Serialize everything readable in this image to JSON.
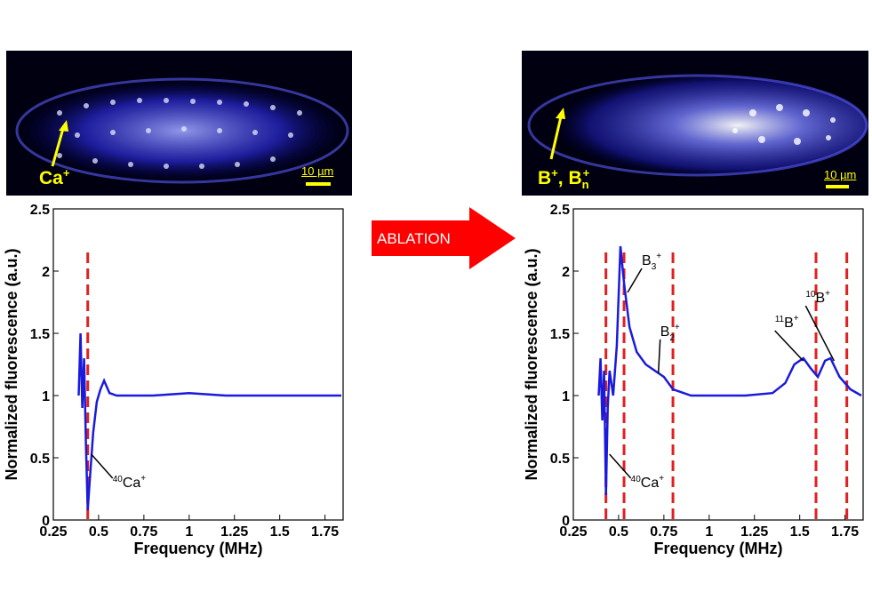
{
  "arrow_label": "ABLATION",
  "colors": {
    "trace": "#1a1adc",
    "marker": "#e02020",
    "arrow": "#ff0000",
    "annotation_yellow": "#ffff00"
  },
  "images": {
    "left": {
      "ion_label": "Ca",
      "ion_sup": "+",
      "scale_bar": "10 µm"
    },
    "right": {
      "ion_label_1": "B",
      "ion_sup_1": "+",
      "ion_sep": ", ",
      "ion_label_2": "B",
      "ion_sub_2": "n",
      "ion_sup_2": "+",
      "scale_bar": "10 µm"
    }
  },
  "chart_data": [
    {
      "type": "line",
      "xlabel": "Frequency (MHz)",
      "ylabel": "Normalized fluorescence (a.u.)",
      "xlim": [
        0.25,
        1.85
      ],
      "ylim": [
        0,
        2.5
      ],
      "xticks": [
        "0.25",
        "0.5",
        "0.75",
        "1",
        "1.25",
        "1.5",
        "1.75"
      ],
      "yticks": [
        "0",
        "0.5",
        "1",
        "1.5",
        "2",
        "2.5"
      ],
      "series": [
        {
          "values_xy": [
            [
              0.39,
              1.0
            ],
            [
              0.4,
              1.5
            ],
            [
              0.41,
              0.9
            ],
            [
              0.42,
              1.3
            ],
            [
              0.43,
              0.6
            ],
            [
              0.44,
              0.08
            ],
            [
              0.45,
              0.3
            ],
            [
              0.47,
              0.7
            ],
            [
              0.49,
              0.95
            ],
            [
              0.51,
              1.05
            ],
            [
              0.53,
              1.12
            ],
            [
              0.56,
              1.02
            ],
            [
              0.6,
              1.0
            ],
            [
              0.8,
              1.0
            ],
            [
              1.0,
              1.02
            ],
            [
              1.2,
              1.0
            ],
            [
              1.4,
              1.0
            ],
            [
              1.6,
              1.0
            ],
            [
              1.84,
              1.0
            ]
          ]
        }
      ],
      "markers_x": [
        0.44
      ],
      "annotations": [
        {
          "x": 0.44,
          "y": 0.55,
          "mass": "40",
          "label": "Ca",
          "sup": "+"
        }
      ]
    },
    {
      "type": "line",
      "xlabel": "Frequency (MHz)",
      "ylabel": "Normalized fluorescence (a.u.)",
      "xlim": [
        0.25,
        1.85
      ],
      "ylim": [
        0,
        2.5
      ],
      "xticks": [
        "0.25",
        "0.5",
        "0.75",
        "1",
        "1.25",
        "1.5",
        "1.75"
      ],
      "yticks": [
        "0",
        "0.5",
        "1",
        "1.5",
        "2",
        "2.5"
      ],
      "series": [
        {
          "values_xy": [
            [
              0.39,
              1.0
            ],
            [
              0.4,
              1.3
            ],
            [
              0.41,
              0.8
            ],
            [
              0.42,
              1.2
            ],
            [
              0.43,
              0.2
            ],
            [
              0.44,
              0.9
            ],
            [
              0.45,
              1.2
            ],
            [
              0.47,
              1.0
            ],
            [
              0.49,
              1.4
            ],
            [
              0.51,
              2.2
            ],
            [
              0.53,
              1.9
            ],
            [
              0.56,
              1.55
            ],
            [
              0.6,
              1.35
            ],
            [
              0.65,
              1.25
            ],
            [
              0.7,
              1.2
            ],
            [
              0.75,
              1.15
            ],
            [
              0.8,
              1.05
            ],
            [
              0.9,
              1.0
            ],
            [
              1.2,
              1.0
            ],
            [
              1.35,
              1.02
            ],
            [
              1.42,
              1.1
            ],
            [
              1.47,
              1.25
            ],
            [
              1.52,
              1.3
            ],
            [
              1.56,
              1.22
            ],
            [
              1.6,
              1.15
            ],
            [
              1.64,
              1.28
            ],
            [
              1.67,
              1.3
            ],
            [
              1.72,
              1.15
            ],
            [
              1.78,
              1.05
            ],
            [
              1.84,
              1.0
            ]
          ]
        }
      ],
      "markers_x": [
        0.43,
        0.53,
        0.8,
        1.59,
        1.76
      ],
      "annotations": [
        {
          "x": 0.43,
          "y": 0.55,
          "mass": "40",
          "label": "Ca",
          "sup": "+"
        },
        {
          "x": 0.53,
          "y": 1.85,
          "label": "B",
          "sub": "3",
          "sup": "+"
        },
        {
          "x": 0.7,
          "y": 1.2,
          "label": "B",
          "sub": "2",
          "sup": "+"
        },
        {
          "x": 1.5,
          "y": 1.3,
          "mass": "11",
          "label": "B",
          "sup": "+"
        },
        {
          "x": 1.67,
          "y": 1.3,
          "mass": "10",
          "label": "B",
          "sup": "+"
        }
      ]
    }
  ]
}
